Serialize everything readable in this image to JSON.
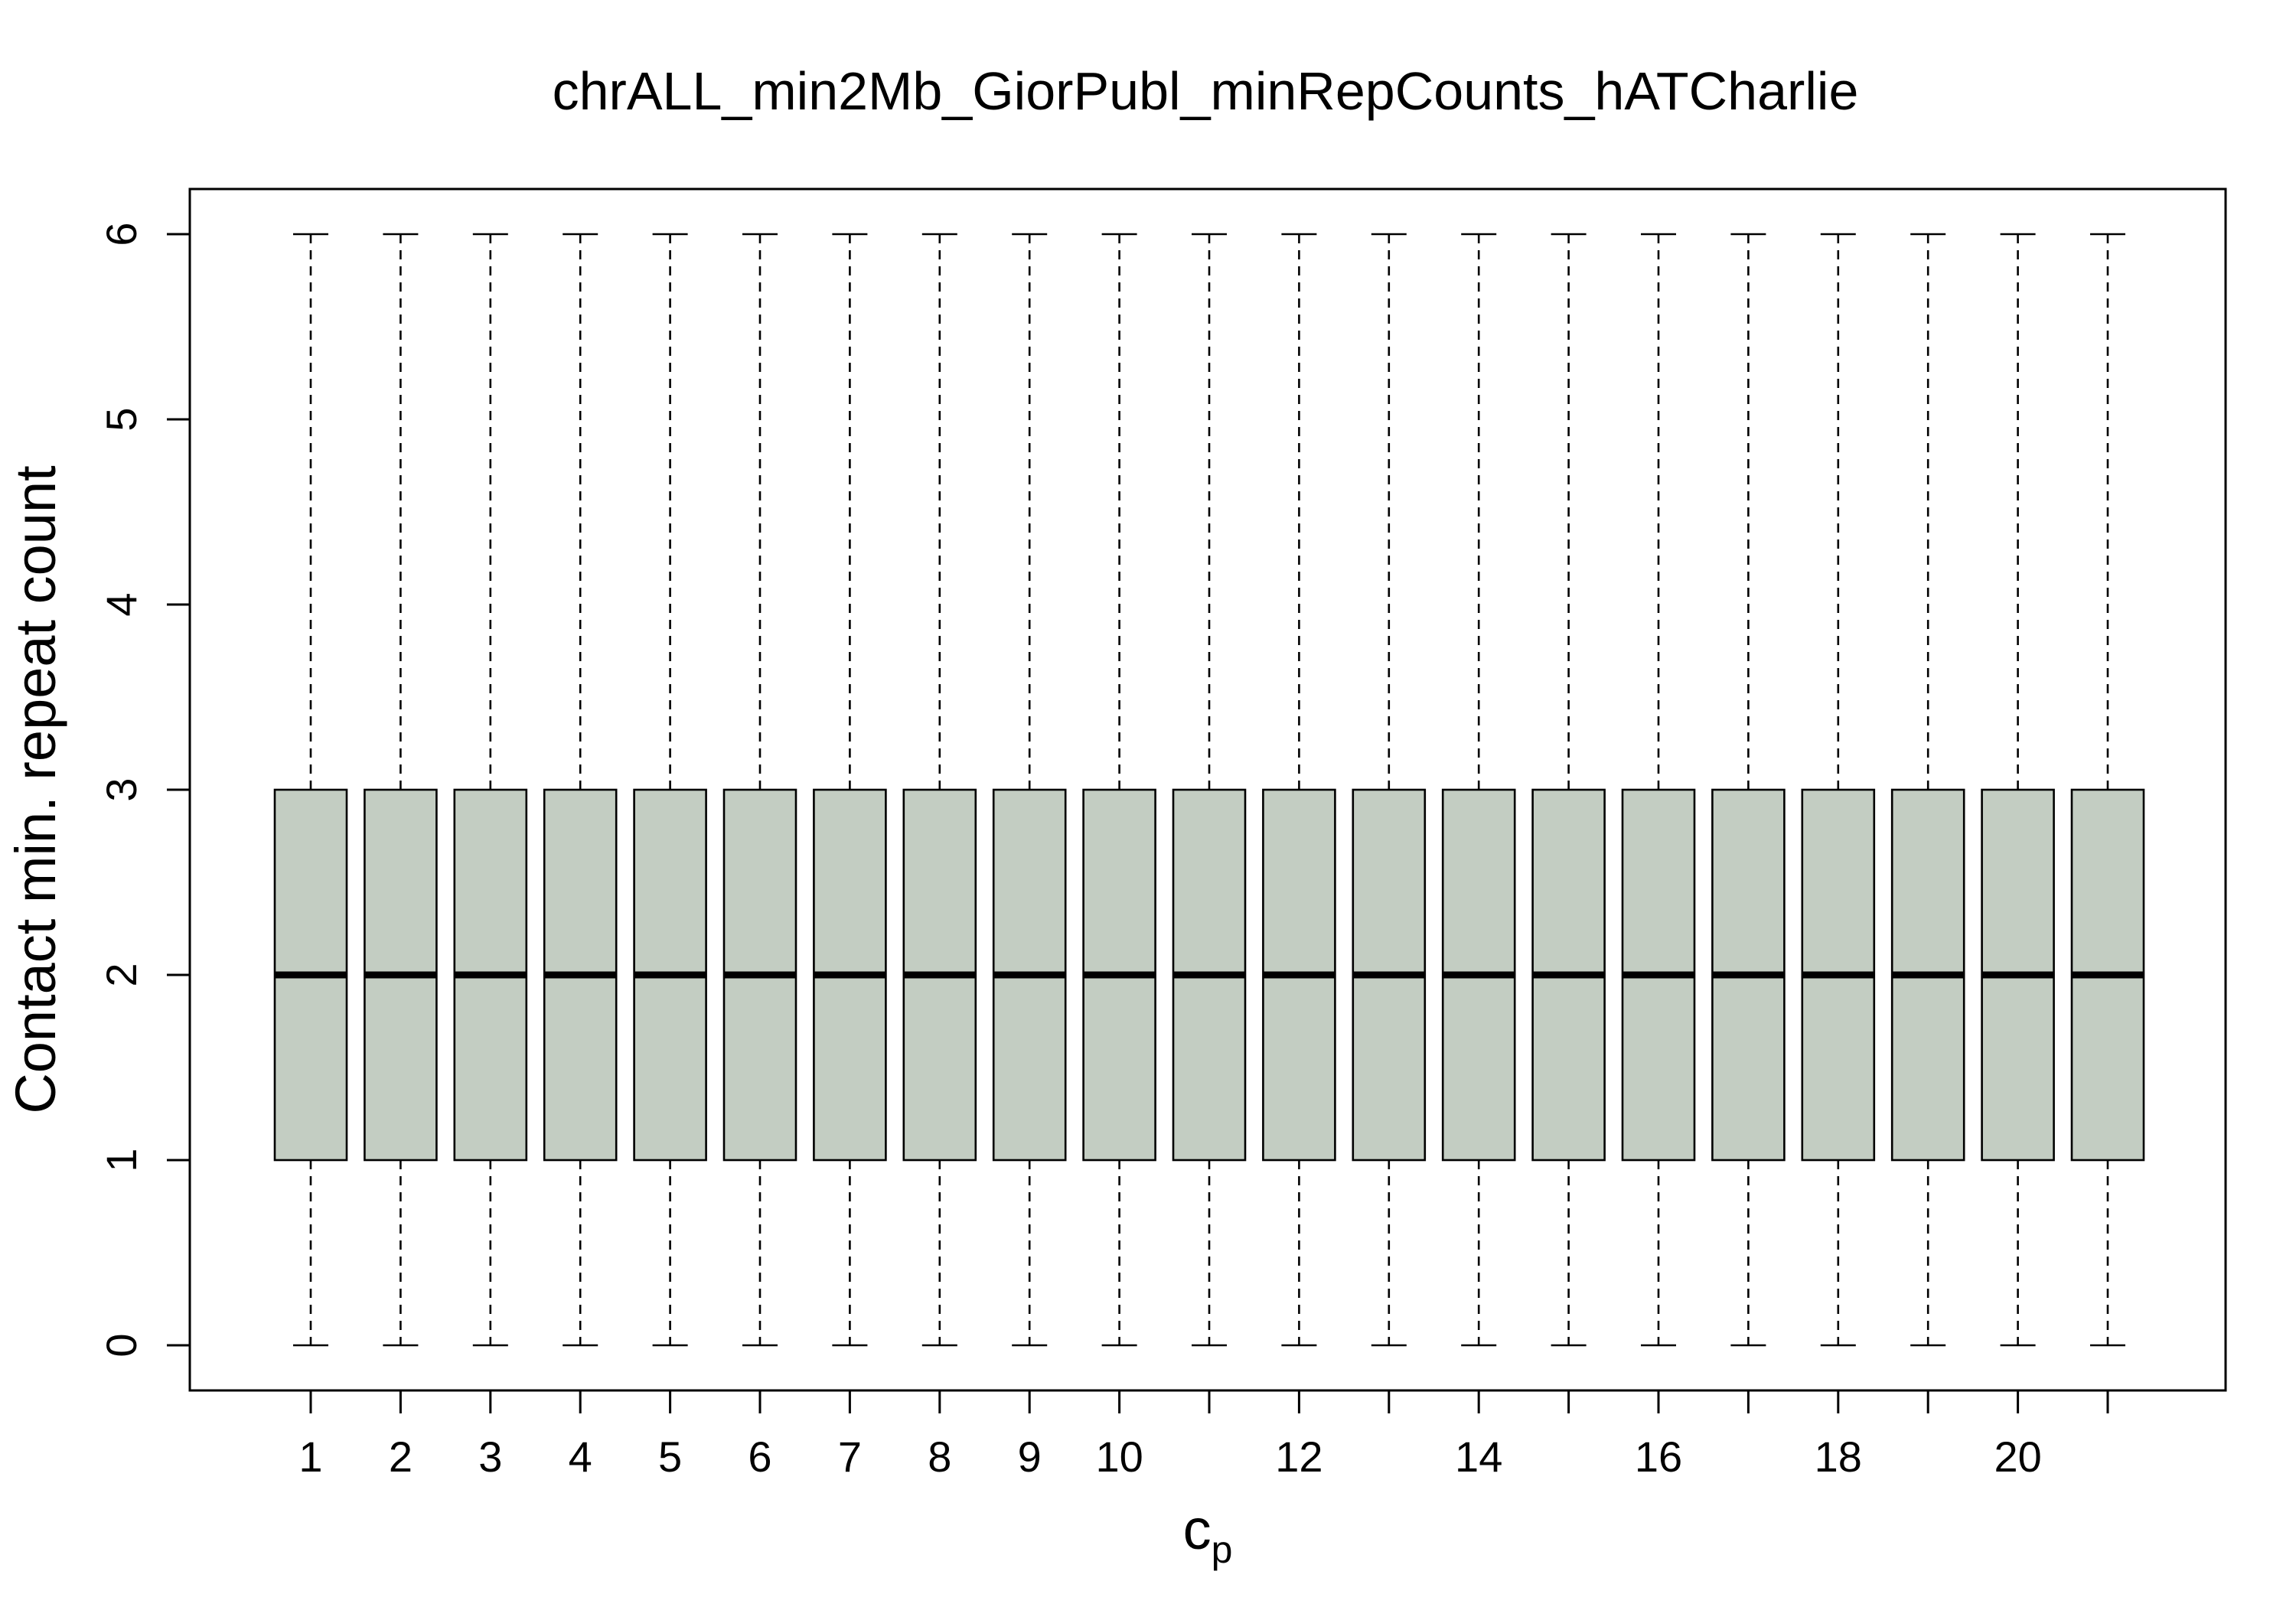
{
  "chart_data": {
    "type": "box",
    "title": "chrALL_min2Mb_GiorPubl_minRepCounts_hATCharlie",
    "xlabel": "c",
    "xlabel_subscript": "p",
    "ylabel": "Contact min. repeat count",
    "box_color": "#c3cdc2",
    "ylim": [
      0,
      6
    ],
    "y_ticks": [
      "0",
      "1",
      "2",
      "3",
      "4",
      "5",
      "6"
    ],
    "categories": [
      "1",
      "2",
      "3",
      "4",
      "5",
      "6",
      "7",
      "8",
      "9",
      "10",
      "11",
      "12",
      "13",
      "14",
      "15",
      "16",
      "17",
      "18",
      "19",
      "20",
      "21"
    ],
    "x_tick_labels_shown": [
      "1",
      "2",
      "3",
      "4",
      "5",
      "6",
      "7",
      "8",
      "9",
      "10",
      "",
      "12",
      "",
      "14",
      "",
      "16",
      "",
      "18",
      "",
      "20",
      ""
    ],
    "boxes": [
      {
        "x": "1",
        "min": 0,
        "q1": 1,
        "median": 2,
        "q3": 3,
        "max": 6
      },
      {
        "x": "2",
        "min": 0,
        "q1": 1,
        "median": 2,
        "q3": 3,
        "max": 6
      },
      {
        "x": "3",
        "min": 0,
        "q1": 1,
        "median": 2,
        "q3": 3,
        "max": 6
      },
      {
        "x": "4",
        "min": 0,
        "q1": 1,
        "median": 2,
        "q3": 3,
        "max": 6
      },
      {
        "x": "5",
        "min": 0,
        "q1": 1,
        "median": 2,
        "q3": 3,
        "max": 6
      },
      {
        "x": "6",
        "min": 0,
        "q1": 1,
        "median": 2,
        "q3": 3,
        "max": 6
      },
      {
        "x": "7",
        "min": 0,
        "q1": 1,
        "median": 2,
        "q3": 3,
        "max": 6
      },
      {
        "x": "8",
        "min": 0,
        "q1": 1,
        "median": 2,
        "q3": 3,
        "max": 6
      },
      {
        "x": "9",
        "min": 0,
        "q1": 1,
        "median": 2,
        "q3": 3,
        "max": 6
      },
      {
        "x": "10",
        "min": 0,
        "q1": 1,
        "median": 2,
        "q3": 3,
        "max": 6
      },
      {
        "x": "11",
        "min": 0,
        "q1": 1,
        "median": 2,
        "q3": 3,
        "max": 6
      },
      {
        "x": "12",
        "min": 0,
        "q1": 1,
        "median": 2,
        "q3": 3,
        "max": 6
      },
      {
        "x": "13",
        "min": 0,
        "q1": 1,
        "median": 2,
        "q3": 3,
        "max": 6
      },
      {
        "x": "14",
        "min": 0,
        "q1": 1,
        "median": 2,
        "q3": 3,
        "max": 6
      },
      {
        "x": "15",
        "min": 0,
        "q1": 1,
        "median": 2,
        "q3": 3,
        "max": 6
      },
      {
        "x": "16",
        "min": 0,
        "q1": 1,
        "median": 2,
        "q3": 3,
        "max": 6
      },
      {
        "x": "17",
        "min": 0,
        "q1": 1,
        "median": 2,
        "q3": 3,
        "max": 6
      },
      {
        "x": "18",
        "min": 0,
        "q1": 1,
        "median": 2,
        "q3": 3,
        "max": 6
      },
      {
        "x": "19",
        "min": 0,
        "q1": 1,
        "median": 2,
        "q3": 3,
        "max": 6
      },
      {
        "x": "20",
        "min": 0,
        "q1": 1,
        "median": 2,
        "q3": 3,
        "max": 6
      },
      {
        "x": "21",
        "min": 0,
        "q1": 1,
        "median": 2,
        "q3": 3,
        "max": 6
      }
    ]
  }
}
